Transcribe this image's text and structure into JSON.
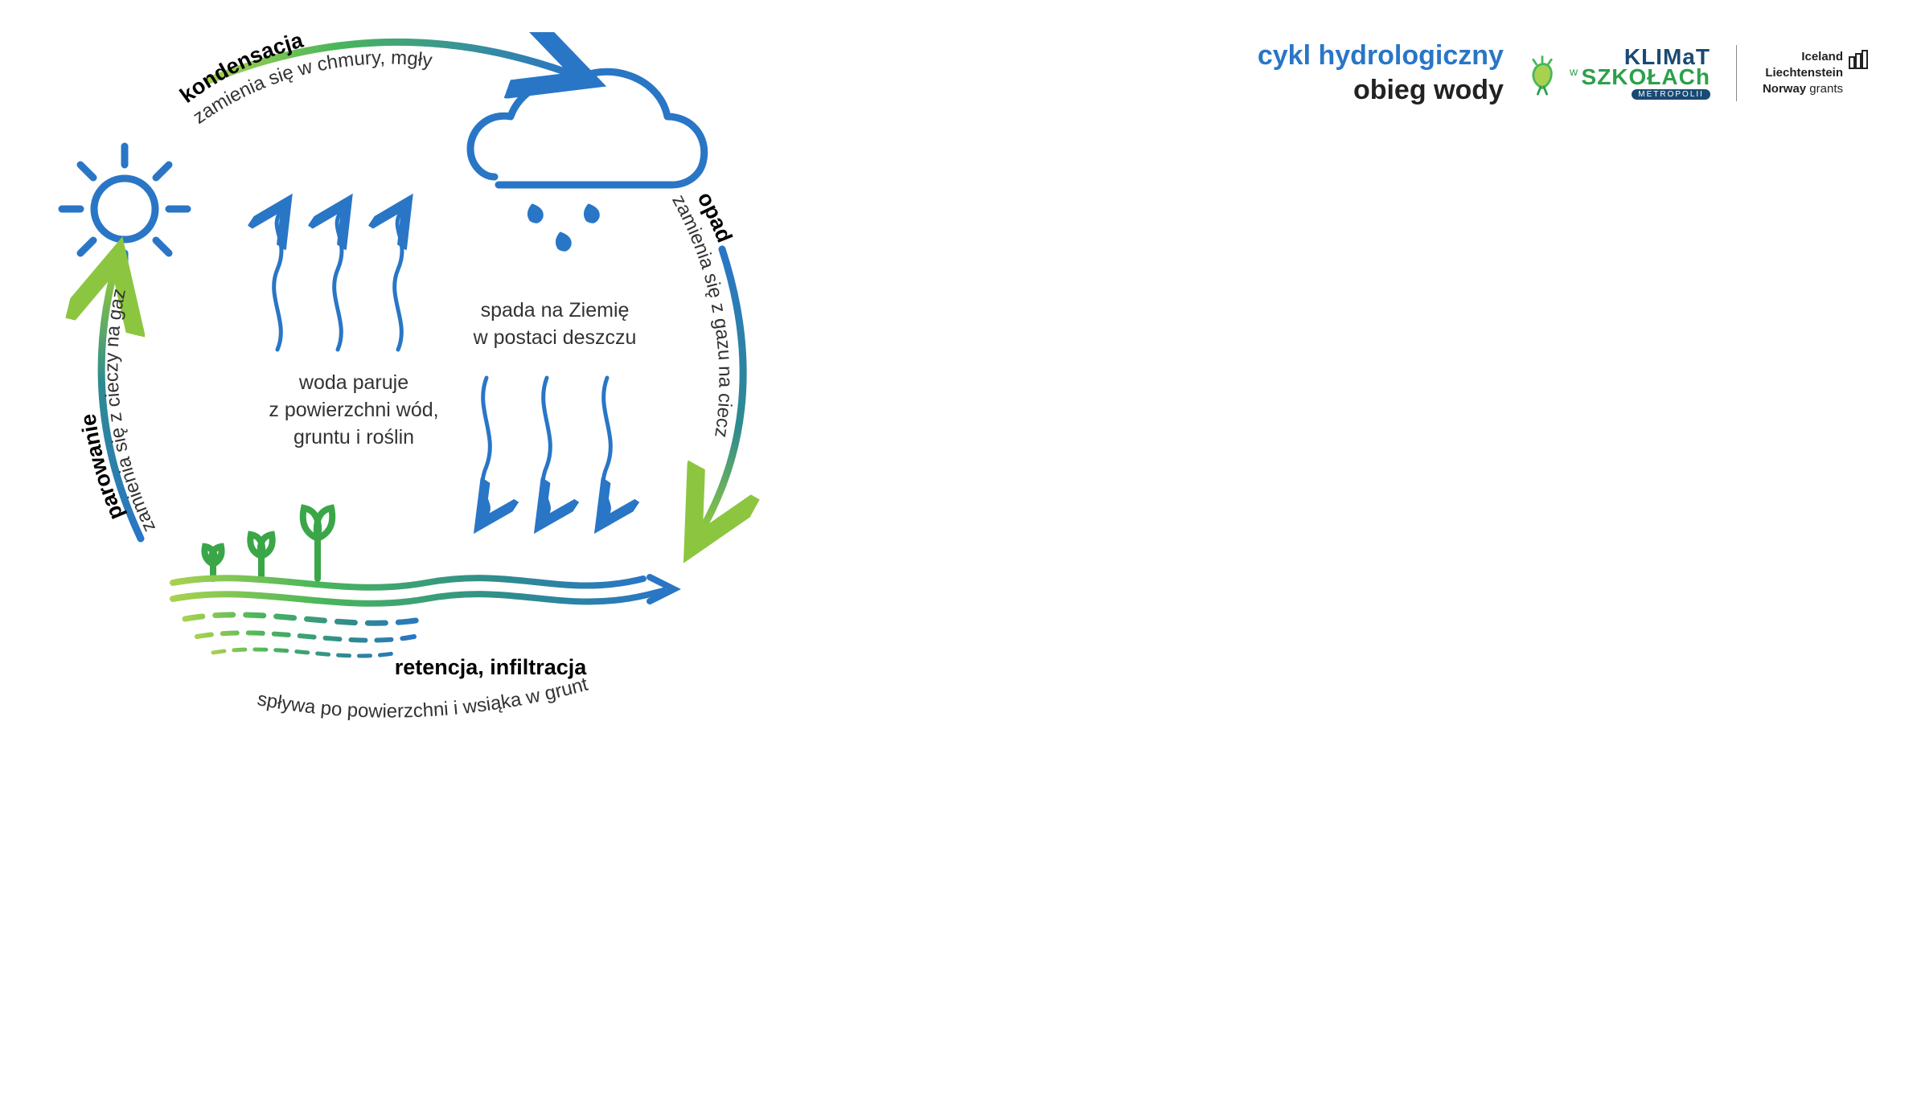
{
  "header": {
    "title1": "cykl hydrologiczny",
    "title2": "obieg wody",
    "logo": {
      "line1": "KLIMaT",
      "line2": "SZKOŁACh",
      "line2_small": "w",
      "badge": "METROPOLII"
    },
    "grants": {
      "line1": "Iceland",
      "line2": "Liechtenstein",
      "line3_bold": "Norway",
      "line3_rest": " grants"
    }
  },
  "diagram": {
    "type": "cycle-infographic",
    "colors": {
      "blue": "#2976c6",
      "darkblue": "#1a4a73",
      "green": "#4bb65a",
      "lightgreen": "#a8d150",
      "text": "#333333",
      "stroke_width_main": 8,
      "stroke_width_thin": 5
    },
    "stages": {
      "kondensacja": {
        "title": "kondensacja",
        "subtitle": "zamienia się w chmury, mgły"
      },
      "opad": {
        "title": "opad",
        "subtitle": "zamienia się z gazu na ciecz"
      },
      "retencja": {
        "title": "retencja, infiltracja",
        "subtitle": "spływa po powierzchni i wsiąka w grunt"
      },
      "parowanie": {
        "title": "parowanie",
        "subtitle": "zamienia się z cieczy na gaz"
      }
    },
    "center_text": {
      "evap": "woda paruje\nz powierzchni wód,\ngruntu i roślin",
      "rain": "spada na Ziemię\nw postaci deszczu"
    }
  }
}
